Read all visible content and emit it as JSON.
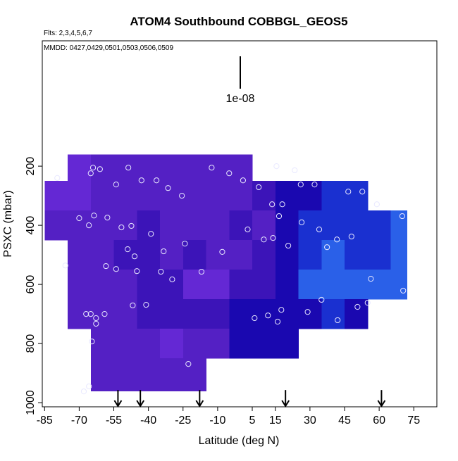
{
  "chart_data": {
    "type": "heatmap",
    "title": "ATOM4 Southbound COBBGL_GEOS5",
    "flights_note": "Flts: 2,3,4,5,6,7",
    "dates_note": "MMDD: 0427,0429,0501,0503,0506,0509",
    "scale_label": "1e-08",
    "xlabel": "Latitude (deg N)",
    "ylabel": "PSXC (mbar)",
    "xlim": [
      -86,
      85
    ],
    "ylim": [
      1014,
      -224
    ],
    "xticks": [
      -85,
      -70,
      -55,
      -40,
      -25,
      -10,
      5,
      15,
      30,
      45,
      60,
      75
    ],
    "yticks": [
      200,
      400,
      600,
      800,
      1000
    ],
    "lat_edges": [
      -85,
      -75,
      -65,
      -55,
      -45,
      -35,
      -25,
      -15,
      -5,
      5,
      15,
      25,
      35,
      45,
      55,
      65,
      72
    ],
    "pressure_edges": [
      160,
      250,
      350,
      450,
      550,
      650,
      750,
      850,
      960
    ],
    "cell_colors": [
      [
        null,
        "#6428d4",
        "#5420c4",
        "#5420c4",
        "#5420c4",
        "#5420c4",
        "#5420c4",
        "#5420c4",
        "#5420c4",
        null,
        null,
        null,
        null,
        null,
        null,
        null
      ],
      [
        "#6428d4",
        "#6428d4",
        "#5420c4",
        "#5420c4",
        "#5420c4",
        "#5420c4",
        "#5420c4",
        "#5420c4",
        "#5420c4",
        "#3c14b8",
        "#1a08b0",
        "#1a08b0",
        "#1a30d0",
        "#1a30d0",
        null,
        null
      ],
      [
        "#5420c4",
        "#5420c4",
        "#5420c4",
        "#5420c4",
        "#3c14b8",
        "#5420c4",
        "#5420c4",
        "#5420c4",
        "#3c14b8",
        "#5420c4",
        "#1a08b0",
        "#1a30d0",
        "#1a30d0",
        "#1a30d0",
        "#1a30d0",
        "#2a60e8"
      ],
      [
        null,
        "#5420c4",
        "#5420c4",
        "#3c14b8",
        "#3c14b8",
        "#5420c4",
        "#3c14b8",
        "#5420c4",
        "#5420c4",
        "#3c14b8",
        "#1a08b0",
        "#1a30d0",
        "#2a60e8",
        "#1a30d0",
        "#1a30d0",
        "#2a60e8"
      ],
      [
        null,
        "#5420c4",
        "#5420c4",
        "#5420c4",
        "#3c14b8",
        "#3c14b8",
        "#6428d4",
        "#6428d4",
        "#3c14b8",
        "#3c14b8",
        "#1a08b0",
        "#2a60e8",
        "#2a60e8",
        "#2a60e8",
        "#2a60e8",
        "#2a60e8"
      ],
      [
        null,
        "#5420c4",
        "#5420c4",
        "#5420c4",
        "#3c14b8",
        "#3c14b8",
        "#3c14b8",
        "#3c14b8",
        "#1a08b0",
        "#1a08b0",
        "#1a08b0",
        "#1a08b0",
        "#1a30d0",
        "#1a08b0",
        null,
        null
      ],
      [
        null,
        null,
        "#5420c4",
        "#5420c4",
        "#5420c4",
        "#6428d4",
        "#5420c4",
        "#5420c4",
        "#1a08b0",
        "#1a08b0",
        "#1a08b0",
        null,
        null,
        null,
        null,
        null
      ],
      [
        null,
        null,
        "#5420c4",
        "#5420c4",
        "#5420c4",
        "#5420c4",
        "#5420c4",
        null,
        null,
        null,
        null,
        null,
        null,
        null,
        null,
        null
      ]
    ],
    "points": {
      "color": "#e8e8ff",
      "x": [
        -79.5,
        -65,
        -64,
        -61,
        -48.7,
        -54,
        -43,
        -36.5,
        -31.5,
        -25.5,
        -12.6,
        -5,
        1,
        7.8,
        15.5,
        23.4,
        26,
        32,
        46.6,
        52.7,
        59,
        70,
        13.6,
        18,
        16.6,
        26.4,
        34,
        3,
        -70,
        -63.6,
        -57.8,
        -65.8,
        -51.7,
        -47.4,
        -38.9,
        -24.2,
        -33.4,
        -8,
        10,
        14,
        20.6,
        37.4,
        41.7,
        48,
        -76,
        -58.4,
        -54,
        -49,
        -46,
        -45,
        -34.6,
        -17,
        -29.7,
        56.4,
        70.4,
        35,
        -46.8,
        -41,
        29,
        17.6,
        50.6,
        55,
        42,
        -67,
        -65,
        -62.7,
        -62.7,
        -59,
        6,
        11.8,
        16,
        -64.5,
        -22.7,
        -65.8,
        -68
      ],
      "y": [
        240,
        224,
        205,
        210,
        205,
        262,
        248,
        248,
        274,
        300,
        205,
        224,
        248,
        271,
        200,
        214,
        262,
        262,
        286,
        286,
        329,
        369,
        329,
        329,
        369,
        390,
        414,
        414,
        376,
        367,
        374,
        400,
        407,
        402,
        429,
        462,
        488,
        490,
        448,
        443,
        469,
        474,
        448,
        438,
        536,
        538,
        548,
        481,
        505,
        555,
        557,
        557,
        583,
        581,
        621,
        652,
        671,
        669,
        693,
        686,
        676,
        662,
        721,
        700,
        700,
        714,
        733,
        700,
        714,
        705,
        726,
        793,
        869,
        945,
        962
      ]
    },
    "arrows_lat": [
      -53.2,
      -43.5,
      -17.8,
      19.4,
      61
    ],
    "arrow_top": 962
  }
}
